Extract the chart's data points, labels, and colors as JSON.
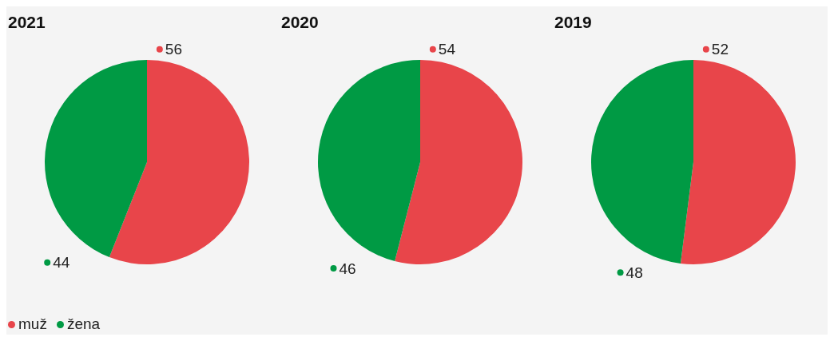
{
  "chart_data": [
    {
      "type": "pie",
      "title": "2021",
      "categories": [
        "muž",
        "žena"
      ],
      "values": [
        56,
        44
      ],
      "colors": [
        "#e8454a",
        "#009a44"
      ],
      "data_labels": true,
      "legend": "bottom"
    },
    {
      "type": "pie",
      "title": "2020",
      "categories": [
        null,
        null
      ],
      "values": [
        54,
        46
      ],
      "colors": [
        "#e8454a",
        "#009a44"
      ],
      "data_labels": true
    },
    {
      "type": "pie",
      "title": "2019",
      "categories": [
        null,
        null
      ],
      "values": [
        52,
        48
      ],
      "colors": [
        "#e8454a",
        "#009a44"
      ],
      "data_labels": true
    }
  ]
}
